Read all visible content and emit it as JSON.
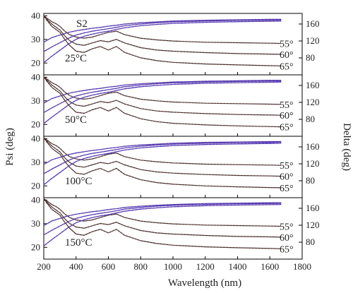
{
  "chart_data": {
    "type": "line",
    "sample_label": "S2",
    "xlabel": "Wavelength (nm)",
    "ylabel_left": "Psi (deg)",
    "ylabel_right": "Delta (deg)",
    "xlim": [
      200,
      1800
    ],
    "x_ticks": [
      "200",
      "400",
      "600",
      "800",
      "1000",
      "1200",
      "1400",
      "1600",
      "1800"
    ],
    "psi_lim": [
      15,
      41
    ],
    "psi_ticks": [
      "20",
      "30",
      "40"
    ],
    "delta_lim": [
      40,
      185
    ],
    "delta_ticks": [
      "80",
      "120",
      "160"
    ],
    "angle_labels": [
      "55°",
      "60°",
      "65°"
    ],
    "colors": {
      "psi_measured": "#2b2b2b",
      "delta_measured": "#3a37c8",
      "fit": "#d9534f",
      "frame": "#000000"
    },
    "panels": [
      {
        "label": "25°C",
        "show_sample_label": true,
        "psi_series": [],
        "delta_series": []
      },
      {
        "label": "50°C",
        "show_sample_label": false,
        "psi_series": [],
        "delta_series": []
      },
      {
        "label": "100°C",
        "show_sample_label": false,
        "psi_series": [],
        "delta_series": []
      },
      {
        "label": "150°C",
        "show_sample_label": false,
        "psi_series": [],
        "delta_series": []
      }
    ],
    "psi_x": [
      200,
      220,
      250,
      280,
      300,
      330,
      360,
      400,
      450,
      500,
      550,
      600,
      650,
      700,
      800,
      900,
      1000,
      1200,
      1400,
      1600,
      1670
    ],
    "psi_curves": {
      "55": [
        40,
        39,
        37.5,
        36.5,
        35.5,
        33.5,
        32,
        31,
        30.5,
        31,
        32,
        33,
        33.5,
        32,
        30.5,
        29.8,
        29.3,
        28.8,
        28.6,
        28.4,
        28.3
      ],
      "60": [
        40,
        38.5,
        36.5,
        35,
        34,
        31.5,
        29.5,
        28,
        27.5,
        28.5,
        29.5,
        29,
        30,
        28.5,
        26.5,
        25.5,
        25,
        24.4,
        24,
        23.8,
        23.7
      ],
      "65": [
        40,
        38,
        35.5,
        34,
        33,
        30,
        27.5,
        25,
        24.5,
        26,
        27,
        25.5,
        27,
        24.5,
        22.2,
        21,
        20.3,
        19.6,
        19.2,
        18.9,
        18.8
      ]
    },
    "delta_x": [
      200,
      250,
      300,
      350,
      400,
      450,
      500,
      550,
      600,
      650,
      700,
      800,
      900,
      1000,
      1200,
      1400,
      1600,
      1670
    ],
    "delta_curves": {
      "55": [
        117,
        128,
        134,
        140,
        144,
        147,
        150,
        152,
        155,
        157,
        160,
        163,
        165,
        167,
        169,
        170,
        171,
        171
      ],
      "60": [
        95,
        106,
        116,
        126,
        134,
        139,
        143,
        146,
        149,
        152,
        156,
        160,
        163,
        165,
        167,
        168.5,
        169,
        169.5
      ],
      "65": [
        69,
        84,
        98,
        112,
        124,
        131,
        136,
        140,
        143,
        147,
        151,
        156,
        159,
        161.5,
        164,
        165.5,
        166.5,
        167
      ]
    },
    "panel_offsets": [
      {
        "psi": 0,
        "delta": 0
      },
      {
        "psi": 0.2,
        "delta": 1
      },
      {
        "psi": 0.4,
        "delta": 1.5
      },
      {
        "psi": 0.6,
        "delta": 2
      }
    ],
    "grid": false,
    "legend": "none"
  }
}
